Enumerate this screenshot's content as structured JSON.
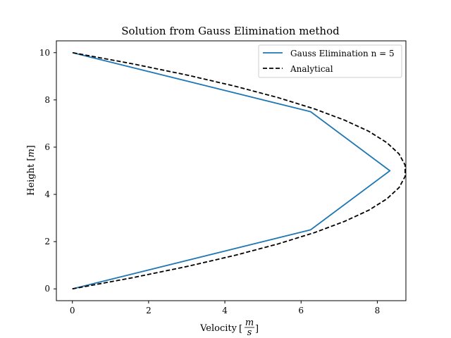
{
  "chart_data": {
    "type": "line",
    "title": "Solution from Gauss Elimination method",
    "xlabel": "Velocity",
    "xlabel_unit_num": "m",
    "xlabel_unit_den": "s",
    "ylabel": "Height",
    "ylabel_unit": "m",
    "xlim": [
      -0.42,
      8.75
    ],
    "ylim": [
      -0.5,
      10.5
    ],
    "xticks": [
      0,
      2,
      4,
      6,
      8
    ],
    "yticks": [
      0,
      2,
      4,
      6,
      8,
      10
    ],
    "grid": false,
    "legend_position": "top-right",
    "series": [
      {
        "name": "Gauss Elimination n = 5",
        "style": "solid",
        "color": "#1f77b4",
        "x": [
          0,
          6.25,
          8.33,
          6.25,
          0
        ],
        "y": [
          0,
          2.5,
          5,
          7.5,
          10
        ]
      },
      {
        "name": "Analytical",
        "style": "dashed",
        "color": "#000000",
        "x": [
          0,
          1.59,
          3.02,
          4.29,
          5.4,
          6.35,
          7.14,
          7.78,
          8.25,
          8.57,
          8.73,
          8.73,
          8.57,
          8.25,
          7.78,
          7.14,
          6.35,
          5.4,
          4.29,
          3.02,
          1.59,
          0
        ],
        "y": [
          0,
          0.476,
          0.952,
          1.429,
          1.905,
          2.381,
          2.857,
          3.333,
          3.81,
          4.286,
          4.762,
          5.238,
          5.714,
          6.19,
          6.667,
          7.143,
          7.619,
          8.095,
          8.571,
          9.048,
          9.524,
          10
        ]
      }
    ]
  }
}
